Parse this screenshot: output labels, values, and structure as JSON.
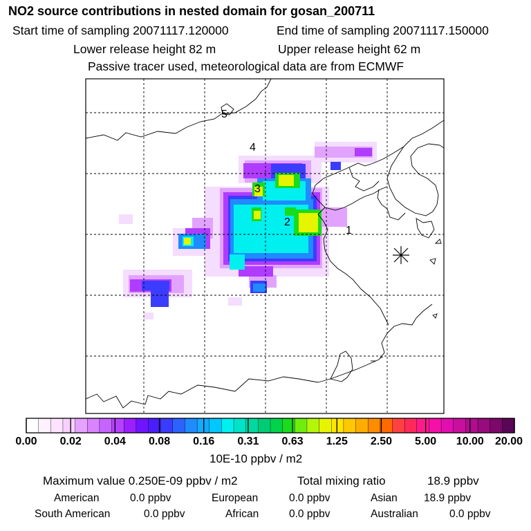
{
  "header": {
    "title": "NO2 source contributions in nested domain for gosan_200711",
    "start_time": "Start time of sampling 20071117.120000",
    "end_time": "End time of sampling 20071117.150000",
    "lower_height": "Lower release height   82 m",
    "upper_height": "Upper release height   62 m",
    "tracer_note": "Passive tracer used, meteorological data are from ECMWF"
  },
  "map": {
    "site_labels": [
      "1",
      "2",
      "3",
      "4",
      "5"
    ],
    "receptor_marker": "receptor-star-icon"
  },
  "colorbar": {
    "tick_labels": [
      "0.00",
      "0.02",
      "0.04",
      "0.08",
      "0.16",
      "0.31",
      "0.63",
      "1.25",
      "2.50",
      "5.00",
      "10.00",
      "20.00"
    ],
    "colors": [
      "#ffffff",
      "#fff2ff",
      "#fde3ff",
      "#f8d0ff",
      "#e5a3ff",
      "#d983ff",
      "#c664ff",
      "#b541ff",
      "#9b1fff",
      "#6f14ff",
      "#4a1dff",
      "#3c3cff",
      "#2c63ff",
      "#1f8bff",
      "#12a9ff",
      "#00c8ff",
      "#00f0f0",
      "#00e3c6",
      "#00d9a0",
      "#00cc77",
      "#00d24a",
      "#18dc1c",
      "#6fee0e",
      "#b5f50a",
      "#e6f400",
      "#ffe600",
      "#ffc800",
      "#ffad00",
      "#ff8c00",
      "#ff6a00",
      "#ff4040",
      "#ff2a59",
      "#ff1a8c",
      "#f510a8",
      "#e20fb0",
      "#c8109f",
      "#af0d8e",
      "#970b7d",
      "#7c0869",
      "#5a0556"
    ],
    "units": "10E-10 ppbv / m2"
  },
  "summary": {
    "maximum_value": "Maximum value  0.250E-09 ppbv / m2",
    "total_mixing_ratio_label": "Total mixing ratio",
    "total_mixing_ratio_value": "18.9 ppbv",
    "american_label": "American",
    "american_value": "0.0 ppbv",
    "european_label": "European",
    "european_value": "0.0 ppbv",
    "asian_label": "Asian",
    "asian_value": "18.9 ppbv",
    "south_american_label": "South American",
    "south_american_value": "0.0 ppbv",
    "african_label": "African",
    "african_value": "0.0 ppbv",
    "australian_label": "Australian",
    "australian_value": "0.0 ppbv"
  }
}
